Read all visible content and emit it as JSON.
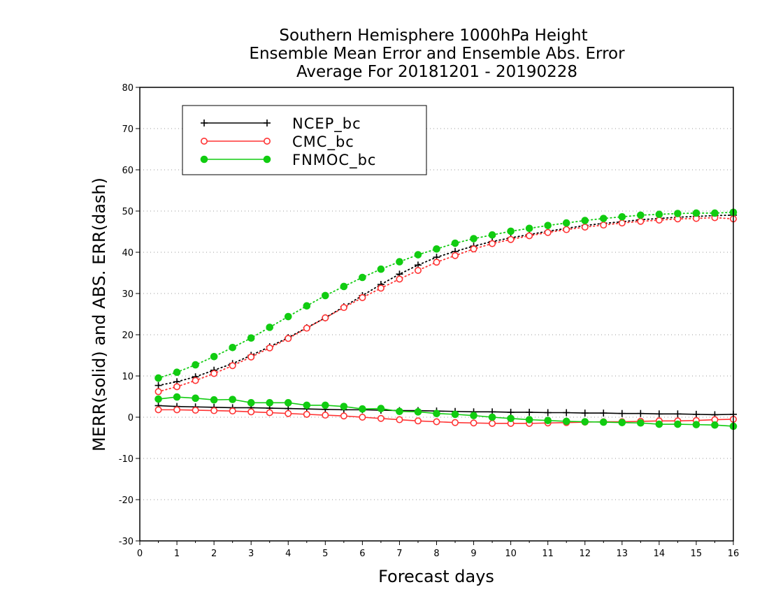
{
  "chart_data": {
    "type": "line",
    "title": [
      "Southern Hemisphere 1000hPa Height",
      "Ensemble Mean Error and Ensemble Abs. Error",
      "Average For 20181201 - 20190228"
    ],
    "xlabel": "Forecast days",
    "ylabel": "MERR(solid) and ABS. ERR(dash)",
    "xlim": [
      0,
      16
    ],
    "ylim": [
      -30,
      80
    ],
    "xticks": [
      0,
      1,
      2,
      3,
      4,
      5,
      6,
      7,
      8,
      9,
      10,
      11,
      12,
      13,
      14,
      15,
      16
    ],
    "yticks": [
      -30,
      -20,
      -10,
      0,
      10,
      20,
      30,
      40,
      50,
      60,
      70,
      80
    ],
    "grid": true,
    "legend_position": "top-left",
    "x": [
      0.5,
      1,
      1.5,
      2,
      2.5,
      3,
      3.5,
      4,
      4.5,
      5,
      5.5,
      6,
      6.5,
      7,
      7.5,
      8,
      8.5,
      9,
      9.5,
      10,
      10.5,
      11,
      11.5,
      12,
      12.5,
      13,
      13.5,
      14,
      14.5,
      15,
      15.5,
      16
    ],
    "series": [
      {
        "name": "NCEP_bc",
        "color": "#000000",
        "marker": "plus",
        "merr": [
          2.8,
          2.6,
          2.5,
          2.4,
          2.3,
          2.3,
          2.2,
          2.1,
          2.0,
          1.9,
          1.8,
          1.8,
          1.7,
          1.6,
          1.6,
          1.5,
          1.4,
          1.3,
          1.3,
          1.2,
          1.2,
          1.1,
          1.1,
          1.0,
          1.0,
          0.9,
          0.9,
          0.8,
          0.8,
          0.7,
          0.6,
          0.7
        ],
        "abs_err": [
          7.7,
          8.6,
          9.8,
          11.4,
          13.0,
          15.0,
          17.1,
          19.3,
          21.7,
          24.1,
          26.8,
          29.5,
          32.2,
          34.7,
          36.9,
          38.8,
          40.2,
          41.5,
          42.6,
          43.5,
          44.3,
          45.1,
          45.8,
          46.5,
          47.0,
          47.4,
          47.9,
          48.2,
          48.5,
          48.7,
          48.9,
          49.0
        ]
      },
      {
        "name": "CMC_bc",
        "color": "#ff3333",
        "marker": "open-circle",
        "merr": [
          1.8,
          1.8,
          1.7,
          1.6,
          1.5,
          1.3,
          1.1,
          0.9,
          0.7,
          0.5,
          0.3,
          0.0,
          -0.3,
          -0.6,
          -0.9,
          -1.1,
          -1.3,
          -1.4,
          -1.5,
          -1.5,
          -1.5,
          -1.4,
          -1.3,
          -1.2,
          -1.1,
          -1.1,
          -1.0,
          -0.9,
          -0.9,
          -0.8,
          -0.6,
          -0.5
        ],
        "abs_err": [
          6.2,
          7.4,
          8.9,
          10.6,
          12.5,
          14.6,
          16.8,
          19.1,
          21.6,
          24.1,
          26.6,
          29.0,
          31.3,
          33.5,
          35.6,
          37.6,
          39.2,
          40.8,
          42.1,
          43.1,
          44.0,
          44.8,
          45.5,
          46.1,
          46.6,
          47.1,
          47.5,
          47.8,
          48.1,
          48.2,
          48.4,
          48.1
        ]
      },
      {
        "name": "FNMOC_bc",
        "color": "#11cc11",
        "marker": "filled-circle",
        "merr": [
          4.4,
          4.9,
          4.6,
          4.2,
          4.3,
          3.5,
          3.5,
          3.5,
          2.9,
          2.9,
          2.6,
          2.0,
          2.1,
          1.4,
          1.3,
          0.9,
          0.7,
          0.4,
          0.0,
          -0.3,
          -0.6,
          -0.8,
          -1.0,
          -1.1,
          -1.2,
          -1.3,
          -1.4,
          -1.7,
          -1.7,
          -1.8,
          -1.9,
          -2.2
        ],
        "abs_err": [
          9.5,
          10.9,
          12.7,
          14.7,
          16.9,
          19.2,
          21.8,
          24.4,
          27.0,
          29.5,
          31.7,
          33.9,
          35.9,
          37.7,
          39.4,
          40.8,
          42.2,
          43.3,
          44.2,
          45.1,
          45.8,
          46.5,
          47.1,
          47.7,
          48.2,
          48.6,
          49.0,
          49.2,
          49.4,
          49.5,
          49.5,
          49.7
        ]
      }
    ]
  }
}
